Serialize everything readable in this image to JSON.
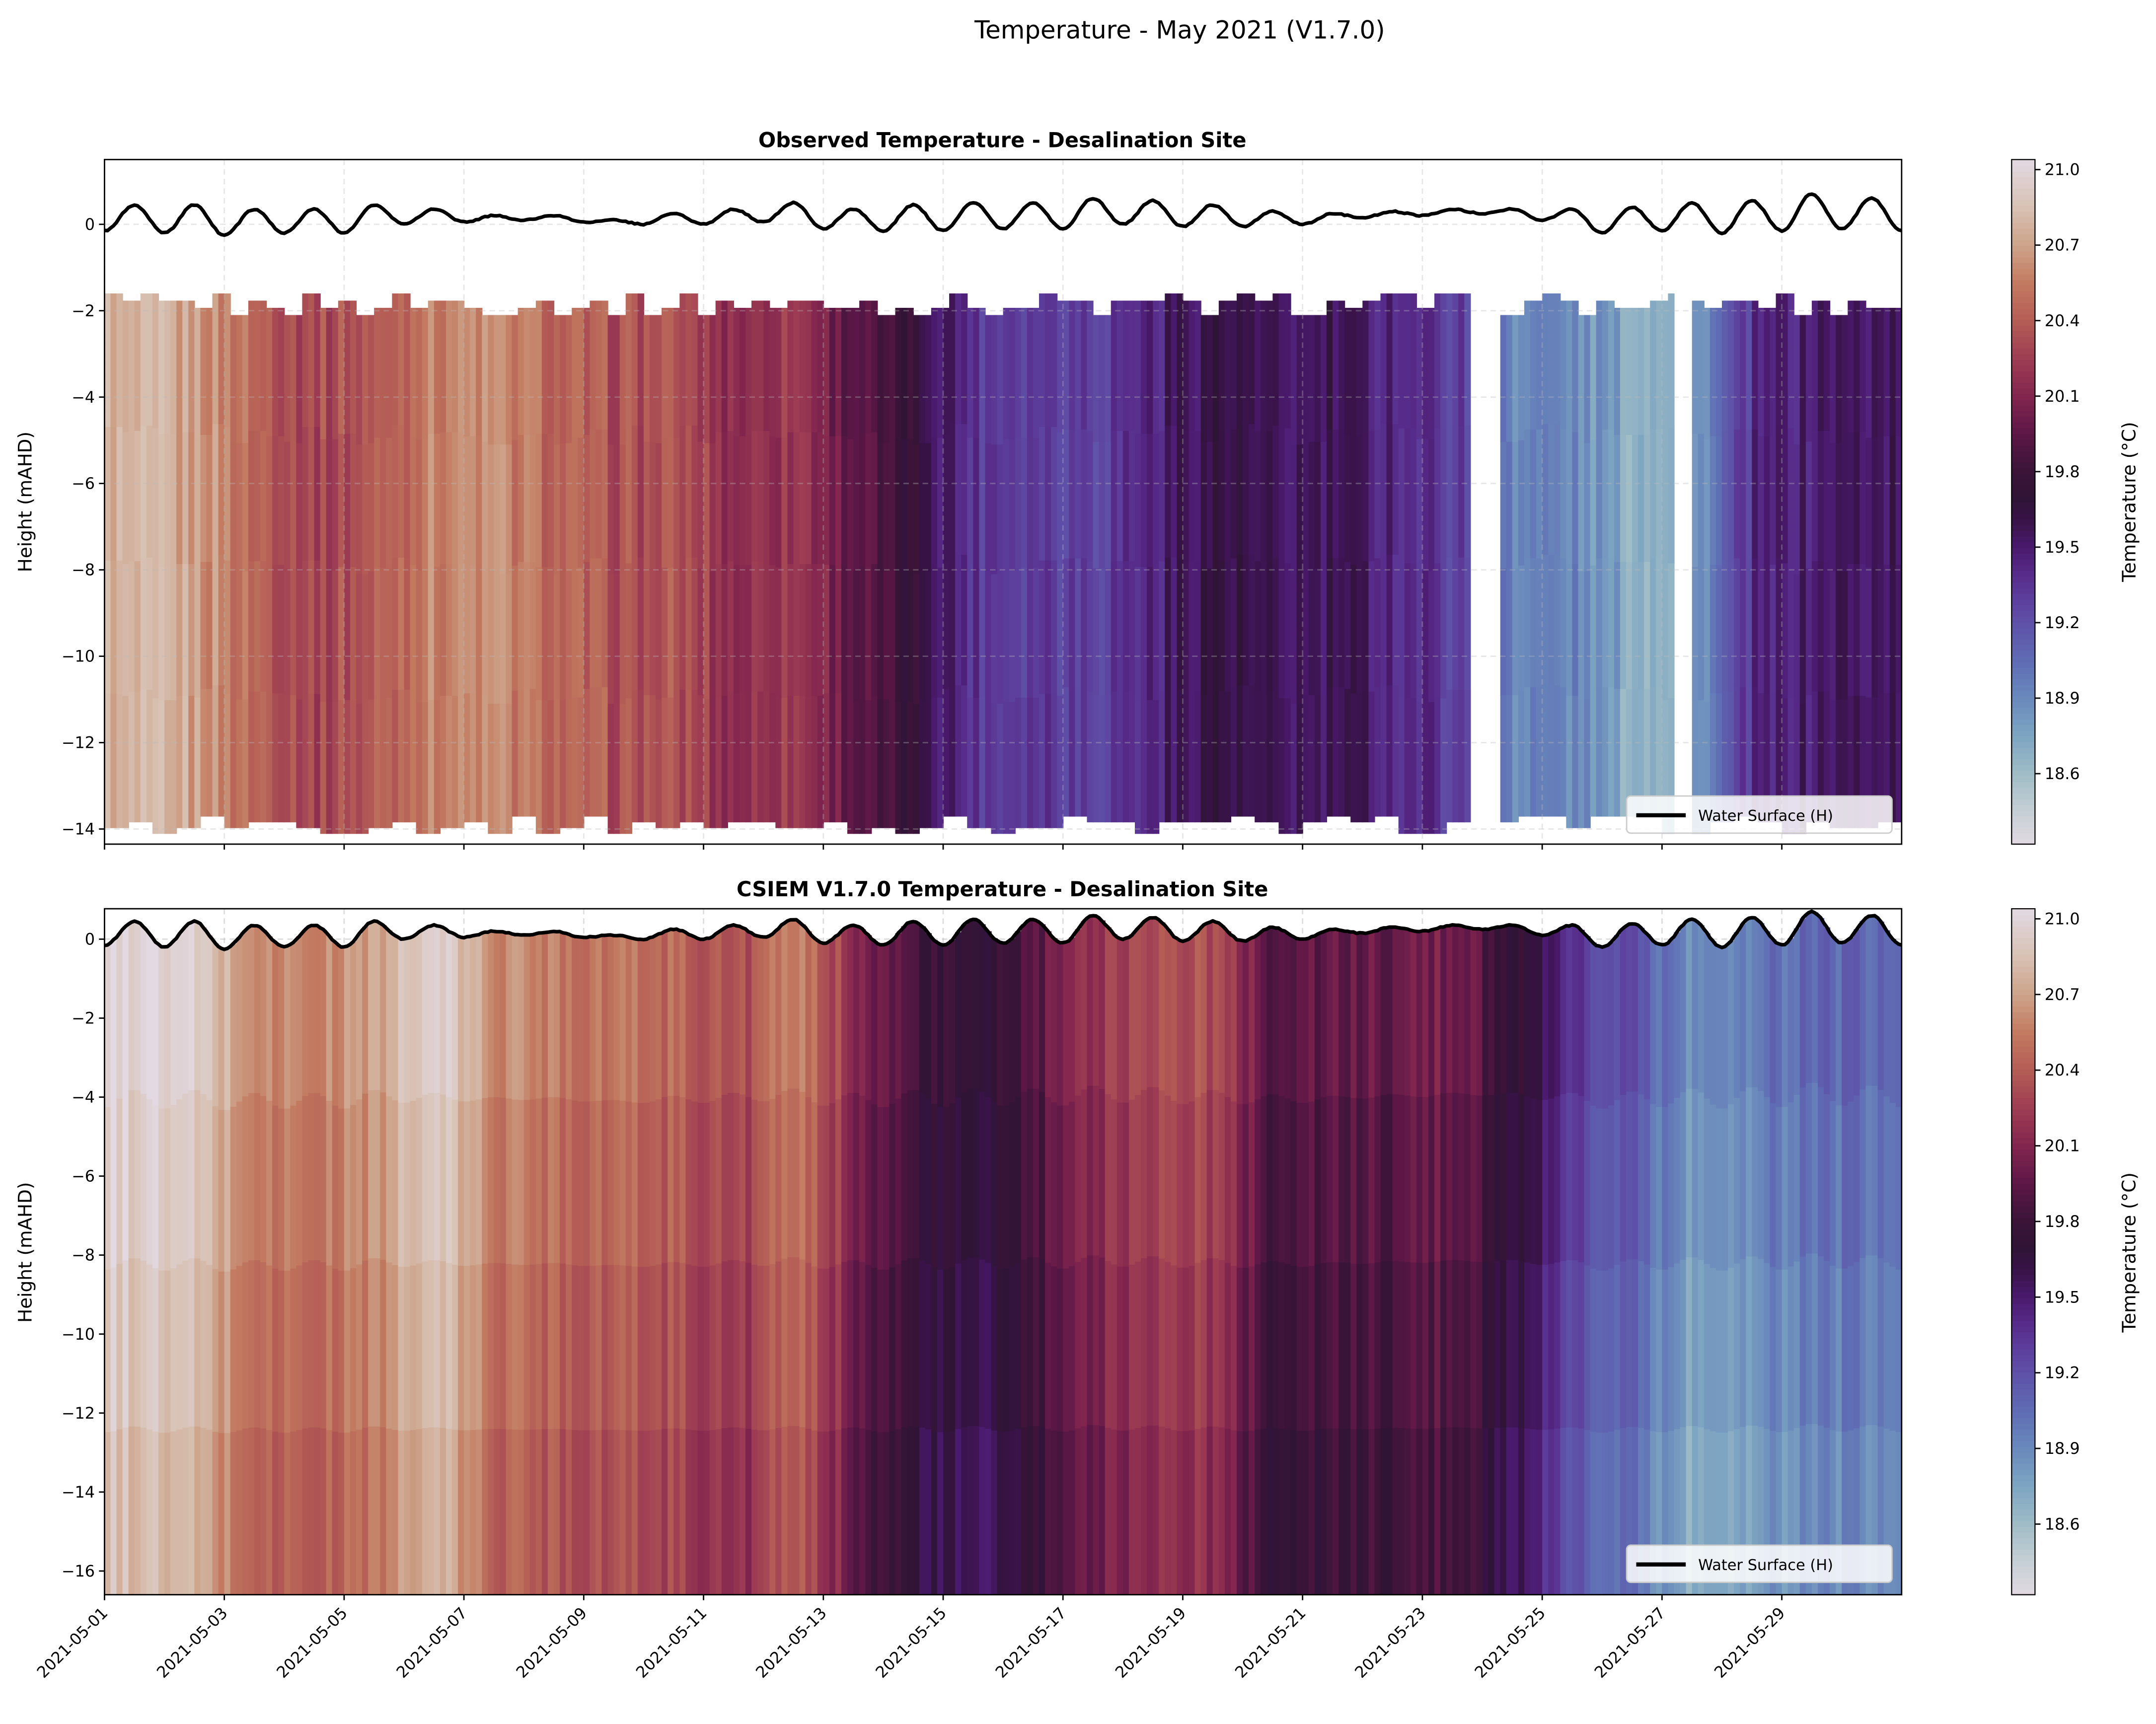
{
  "figure": {
    "suptitle": "Temperature - May 2021 (V1.7.0)"
  },
  "colorbar": {
    "label": "Temperature (°C)",
    "range": [
      18.32,
      21.04
    ],
    "ticks": [
      "18.6",
      "18.9",
      "19.2",
      "19.5",
      "19.8",
      "20.1",
      "20.4",
      "20.7",
      "21.0"
    ],
    "colormap": "twilight",
    "stops": [
      [
        18.32,
        "#e2d9e2"
      ],
      [
        18.45,
        "#c6d0d5"
      ],
      [
        18.6,
        "#a0bdc7"
      ],
      [
        18.75,
        "#7ea5c2"
      ],
      [
        18.9,
        "#6a8abc"
      ],
      [
        19.05,
        "#5f6cb4"
      ],
      [
        19.2,
        "#5e51a8"
      ],
      [
        19.3,
        "#5d3e9c"
      ],
      [
        19.4,
        "#572a88"
      ],
      [
        19.5,
        "#4a1a6e"
      ],
      [
        19.6,
        "#391349"
      ],
      [
        19.7,
        "#2f1436"
      ],
      [
        19.8,
        "#3a1438"
      ],
      [
        19.95,
        "#5c1747"
      ],
      [
        20.1,
        "#82254e"
      ],
      [
        20.25,
        "#9e3d53"
      ],
      [
        20.4,
        "#b45c55"
      ],
      [
        20.55,
        "#c27a60"
      ],
      [
        20.7,
        "#cda38a"
      ],
      [
        20.85,
        "#d8c1b3"
      ],
      [
        21.04,
        "#e2d9e2"
      ]
    ]
  },
  "chart_data": [
    {
      "type": "heatmap",
      "title": "Observed Temperature - Desalination Site",
      "ylabel": "Height (mAHD)",
      "xlabel": "",
      "xlim": [
        "2021-05-01",
        "2021-05-31"
      ],
      "ylim": [
        -14.35,
        1.5
      ],
      "yticks": [
        "0",
        "−2",
        "−4",
        "−6",
        "−8",
        "−10",
        "−12",
        "−14"
      ],
      "ytick_values": [
        0,
        -2,
        -4,
        -6,
        -8,
        -10,
        -12,
        -14
      ],
      "grid": true,
      "profile_top_range": [
        -2.1,
        -1.6
      ],
      "profile_bottom_range": [
        -14.1,
        -13.7
      ],
      "missing_data_days": [
        [
          "2021-05-23 20:00",
          "2021-05-24 06:30"
        ],
        [
          "2021-05-27 07:00",
          "2021-05-27 10:30"
        ]
      ],
      "daily_dates": [
        "05-01",
        "05-02",
        "05-03",
        "05-04",
        "05-05",
        "05-06",
        "05-07",
        "05-08",
        "05-09",
        "05-10",
        "05-11",
        "05-12",
        "05-13",
        "05-14",
        "05-15",
        "05-16",
        "05-17",
        "05-18",
        "05-19",
        "05-20",
        "05-21",
        "05-22",
        "05-23",
        "05-24",
        "05-25",
        "05-26",
        "05-27",
        "05-28",
        "05-29",
        "05-30"
      ],
      "daily_mean_temperature": [
        20.75,
        20.7,
        20.45,
        20.3,
        20.4,
        20.6,
        20.6,
        20.45,
        20.35,
        20.35,
        20.15,
        20.25,
        19.95,
        19.7,
        19.35,
        19.35,
        19.3,
        19.45,
        19.65,
        19.5,
        19.55,
        19.45,
        19.3,
        18.95,
        18.9,
        18.7,
        18.8,
        19.4,
        19.5,
        19.55
      ],
      "legend": {
        "position": "lower-right",
        "entries": [
          "Water Surface (H)"
        ]
      }
    },
    {
      "type": "heatmap",
      "title": "CSIEM V1.7.0 Temperature - Desalination Site",
      "ylabel": "Height (mAHD)",
      "xlabel": "",
      "xlim": [
        "2021-05-01",
        "2021-05-31"
      ],
      "ylim": [
        -16.6,
        0.77
      ],
      "yticks": [
        "0",
        "−2",
        "−4",
        "−6",
        "−8",
        "−10",
        "−12",
        "−14",
        "−16"
      ],
      "ytick_values": [
        0,
        -2,
        -4,
        -6,
        -8,
        -10,
        -12,
        -14,
        -16
      ],
      "grid": true,
      "daily_dates": [
        "05-01",
        "05-02",
        "05-03",
        "05-04",
        "05-05",
        "05-06",
        "05-07",
        "05-08",
        "05-09",
        "05-10",
        "05-11",
        "05-12",
        "05-13",
        "05-14",
        "05-15",
        "05-16",
        "05-17",
        "05-18",
        "05-19",
        "05-20",
        "05-21",
        "05-22",
        "05-23",
        "05-24",
        "05-25",
        "05-26",
        "05-27",
        "05-28",
        "05-29",
        "05-30"
      ],
      "daily_mean_temperature": [
        20.9,
        20.8,
        20.5,
        20.45,
        20.6,
        20.85,
        20.5,
        20.45,
        20.4,
        20.35,
        20.2,
        20.45,
        20.05,
        19.7,
        19.55,
        19.8,
        20.1,
        20.25,
        20.2,
        19.8,
        19.85,
        19.85,
        19.95,
        19.6,
        19.2,
        19.05,
        18.75,
        18.85,
        18.95,
        18.95
      ],
      "legend": {
        "position": "lower-right",
        "entries": [
          "Water Surface (H)"
        ]
      }
    }
  ],
  "water_surface": {
    "name": "Water Surface (H)",
    "color": "#000000",
    "interval_hours": 12,
    "values_m": [
      -0.15,
      0.45,
      -0.2,
      0.45,
      -0.25,
      0.35,
      -0.2,
      0.35,
      -0.2,
      0.45,
      0.0,
      0.35,
      0.05,
      0.2,
      0.1,
      0.2,
      0.05,
      0.1,
      0.0,
      0.25,
      0.0,
      0.35,
      0.05,
      0.5,
      -0.1,
      0.35,
      -0.15,
      0.45,
      -0.15,
      0.5,
      -0.1,
      0.5,
      -0.1,
      0.6,
      0.0,
      0.55,
      -0.05,
      0.45,
      -0.05,
      0.3,
      0.0,
      0.25,
      0.15,
      0.3,
      0.2,
      0.35,
      0.25,
      0.35,
      0.1,
      0.35,
      -0.2,
      0.4,
      -0.15,
      0.5,
      -0.2,
      0.55,
      -0.15,
      0.7,
      -0.1,
      0.6,
      -0.15
    ]
  },
  "xticks": [
    "2021-05-01",
    "2021-05-03",
    "2021-05-05",
    "2021-05-07",
    "2021-05-09",
    "2021-05-11",
    "2021-05-13",
    "2021-05-15",
    "2021-05-17",
    "2021-05-19",
    "2021-05-21",
    "2021-05-23",
    "2021-05-25",
    "2021-05-27",
    "2021-05-29"
  ]
}
